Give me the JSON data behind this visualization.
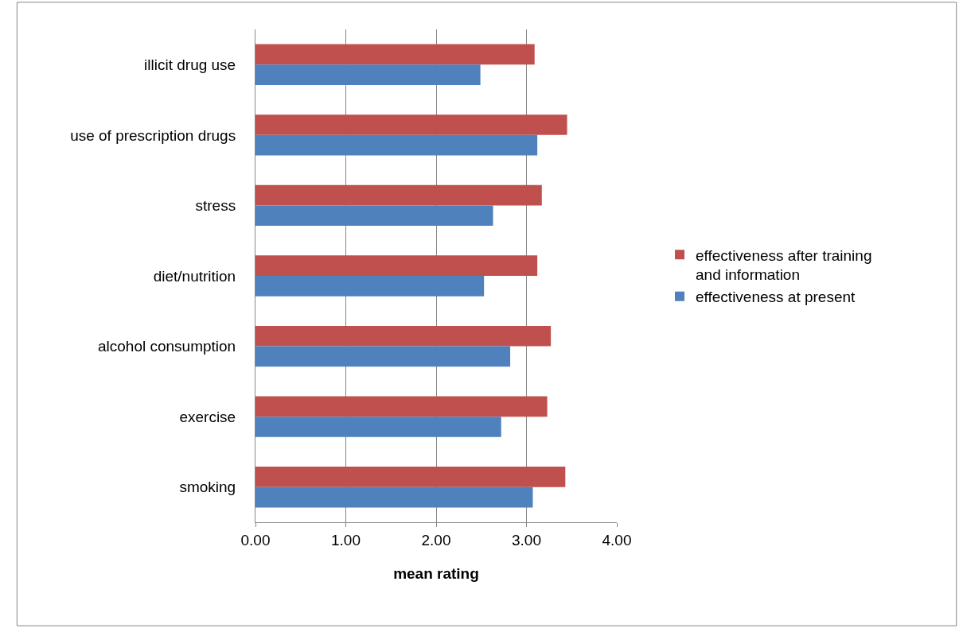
{
  "chart_data": {
    "type": "bar",
    "orientation": "horizontal",
    "xlabel": "mean rating",
    "categories": [
      "illicit drug use",
      "use of prescription drugs",
      "stress",
      "diet/nutrition",
      "alcohol consumption",
      "exercise",
      "smoking"
    ],
    "series": [
      {
        "name": "effectiveness after training and information",
        "color": "#c0504d",
        "values": [
          3.09,
          3.45,
          3.17,
          3.12,
          3.27,
          3.23,
          3.43
        ]
      },
      {
        "name": "effectiveness at present",
        "color": "#4f81bd",
        "values": [
          2.49,
          3.12,
          2.63,
          2.53,
          2.82,
          2.72,
          3.07
        ]
      }
    ],
    "xlim": [
      0,
      4
    ],
    "xticks": [
      {
        "value": 0,
        "label": "0.00"
      },
      {
        "value": 1,
        "label": "1.00"
      },
      {
        "value": 2,
        "label": "2.00"
      },
      {
        "value": 3,
        "label": "3.00"
      },
      {
        "value": 4,
        "label": "4.00"
      }
    ],
    "grid": "x",
    "legend": "right"
  }
}
